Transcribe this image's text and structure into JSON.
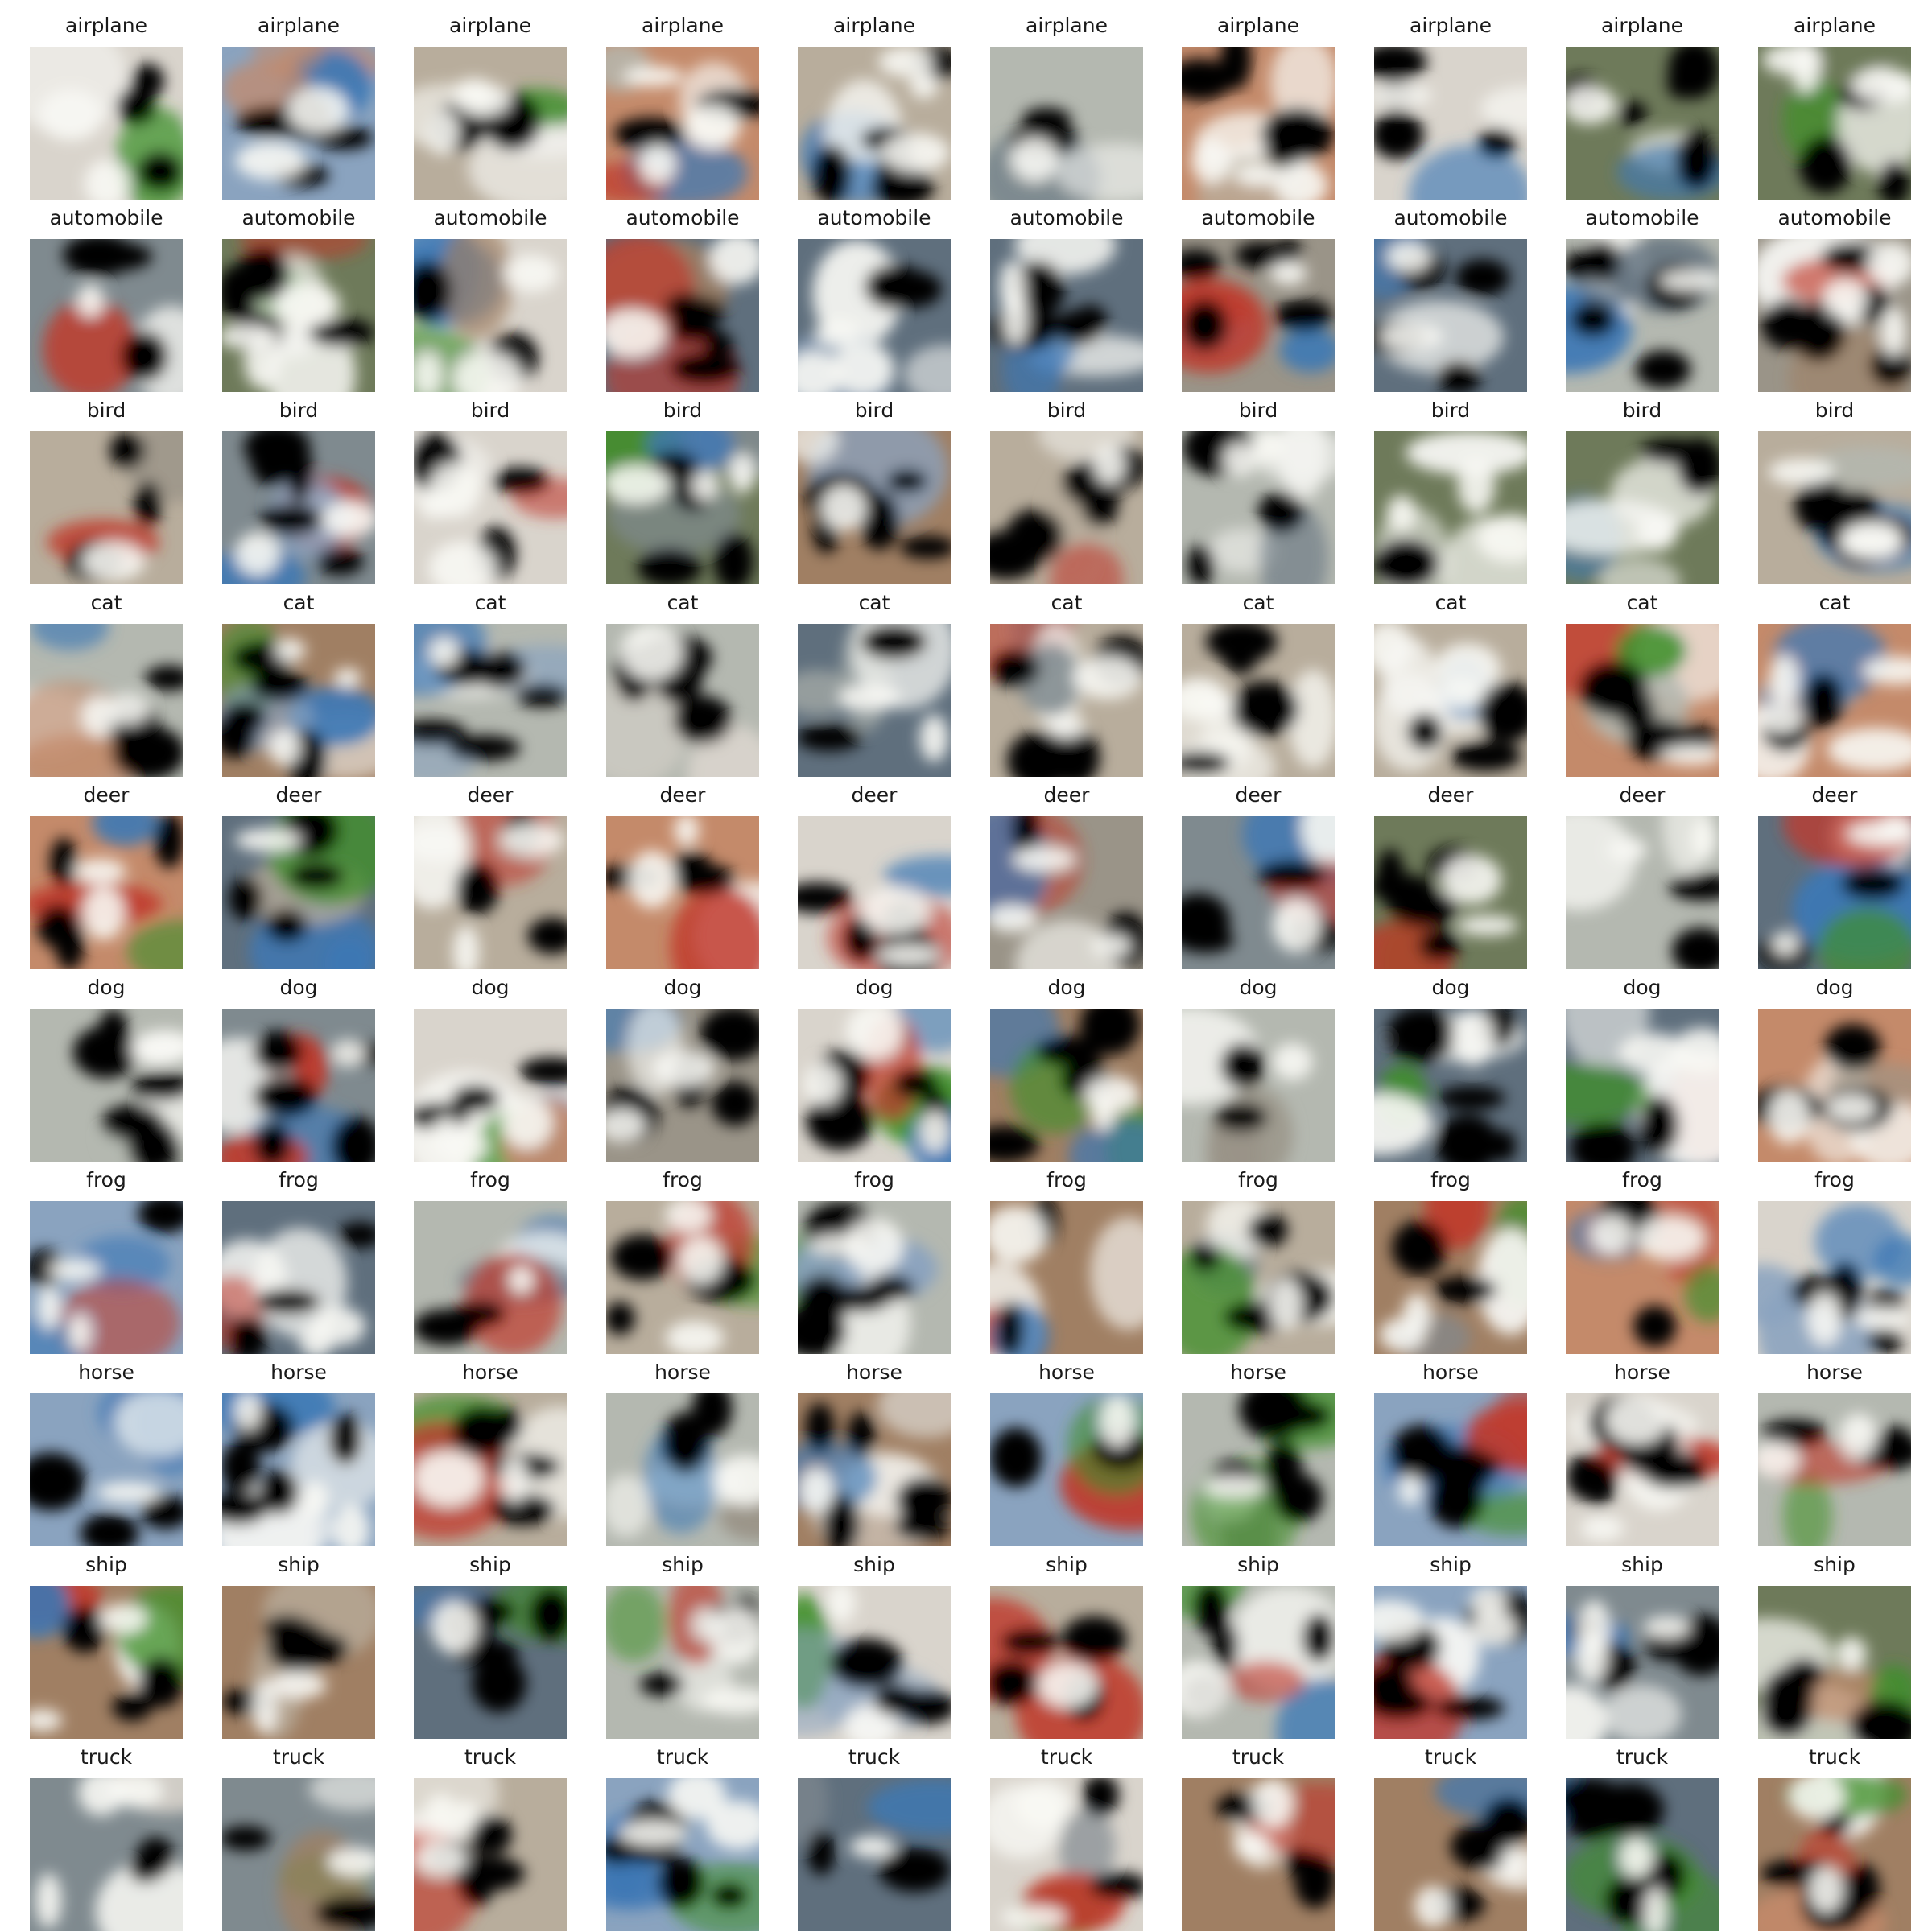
{
  "grid": {
    "rows": 10,
    "cols": 10,
    "classes": [
      "airplane",
      "automobile",
      "bird",
      "cat",
      "deer",
      "dog",
      "frog",
      "horse",
      "ship",
      "truck"
    ]
  },
  "palette": {
    "background": "#ffffff",
    "label_color": "#1a1a1a",
    "tile_colors": [
      "#9a9488",
      "#b8ad9c",
      "#7f8a8f",
      "#8aa3bf",
      "#6e7a5a",
      "#c48a6a",
      "#d9d4cc",
      "#5f6f7d",
      "#a07f63",
      "#b4b8b0"
    ],
    "blob_dark": "#050505",
    "blob_light": "#f8f8f4",
    "accent_red": "#c0392b",
    "accent_green": "#3f8f2a",
    "accent_blue": "#3d78b5"
  },
  "image_style": "blurry generated low-resolution samples, one row per class"
}
